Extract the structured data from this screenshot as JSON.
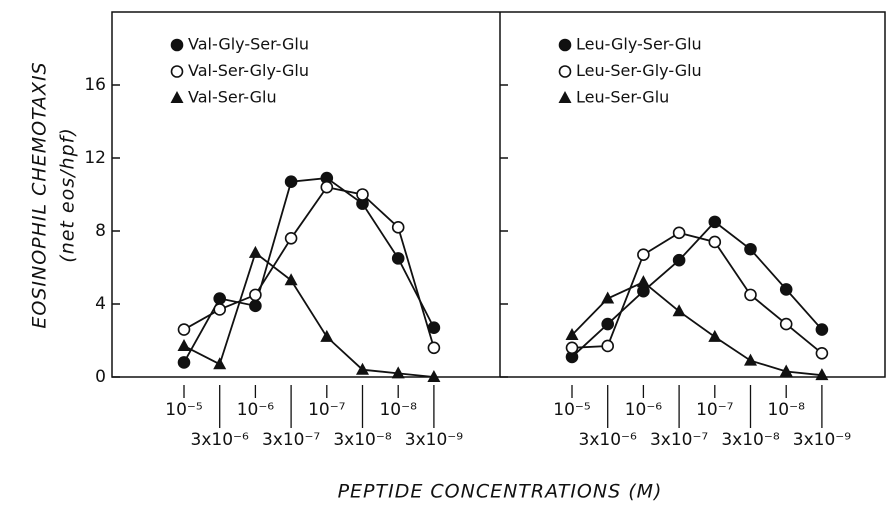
{
  "xlabel": "PEPTIDE CONCENTRATIONS (M)",
  "chart_data": [
    {
      "type": "line",
      "ylabel": "EOSINOPHIL CHEMOTAXIS",
      "ylabel_sub": "(net eos/hpf)",
      "categories": [
        "10⁻⁵",
        "3x10⁻⁶",
        "10⁻⁶",
        "3x10⁻⁷",
        "10⁻⁷",
        "3x10⁻⁸",
        "10⁻⁸",
        "3x10⁻⁹"
      ],
      "ylim": [
        0,
        20
      ],
      "yticks": [
        0,
        4,
        8,
        12,
        16
      ],
      "series": [
        {
          "name": "Val-Gly-Ser-Glu",
          "color": "#111111",
          "marker": "filled-circle",
          "values": [
            0.8,
            4.3,
            3.9,
            10.7,
            10.9,
            9.5,
            6.5,
            2.7
          ]
        },
        {
          "name": "Val-Ser-Gly-Glu",
          "color": "#111111",
          "marker": "open-circle",
          "values": [
            2.6,
            3.7,
            4.5,
            7.6,
            10.4,
            10.0,
            8.2,
            1.6
          ]
        },
        {
          "name": "Val-Ser-Glu",
          "color": "#111111",
          "marker": "triangle",
          "values": [
            1.7,
            0.7,
            6.8,
            5.3,
            2.2,
            0.4,
            0.2,
            0.0
          ]
        }
      ]
    },
    {
      "type": "line",
      "categories": [
        "10⁻⁵",
        "3x10⁻⁶",
        "10⁻⁶",
        "3x10⁻⁷",
        "10⁻⁷",
        "3x10⁻⁸",
        "10⁻⁸",
        "3x10⁻⁹"
      ],
      "ylim": [
        0,
        20
      ],
      "yticks": [
        0,
        4,
        8,
        12,
        16
      ],
      "series": [
        {
          "name": "Leu-Gly-Ser-Glu",
          "color": "#111111",
          "marker": "filled-circle",
          "values": [
            1.1,
            2.9,
            4.7,
            6.4,
            8.5,
            7.0,
            4.8,
            2.6
          ]
        },
        {
          "name": "Leu-Ser-Gly-Glu",
          "color": "#111111",
          "marker": "open-circle",
          "values": [
            1.6,
            1.7,
            6.7,
            7.9,
            7.4,
            4.5,
            2.9,
            1.3
          ]
        },
        {
          "name": "Leu-Ser-Glu",
          "color": "#111111",
          "marker": "triangle",
          "values": [
            2.3,
            4.3,
            5.2,
            3.6,
            2.2,
            0.9,
            0.3,
            0.1
          ]
        }
      ]
    }
  ]
}
